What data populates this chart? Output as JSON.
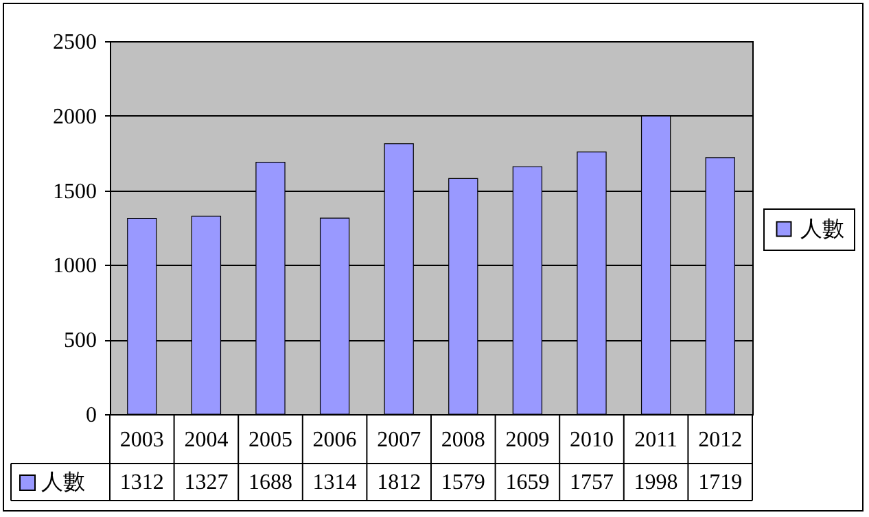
{
  "chart_data": {
    "type": "bar",
    "categories": [
      "2003",
      "2004",
      "2005",
      "2006",
      "2007",
      "2008",
      "2009",
      "2010",
      "2011",
      "2012"
    ],
    "series": [
      {
        "name": "人數",
        "color": "#9999ff",
        "values": [
          1312,
          1327,
          1688,
          1314,
          1812,
          1579,
          1659,
          1757,
          1998,
          1719
        ]
      }
    ],
    "ylim": [
      0,
      2500
    ],
    "yticks": [
      0,
      500,
      {
        "value": 1000,
        "label": "1000"
      },
      {
        "value": 1500,
        "label": "1500"
      },
      {
        "value": 2000,
        "label": "2000"
      },
      {
        "value": 2500,
        "label": "2500"
      }
    ],
    "grid": "y",
    "legend": "right",
    "data_labels": true
  }
}
